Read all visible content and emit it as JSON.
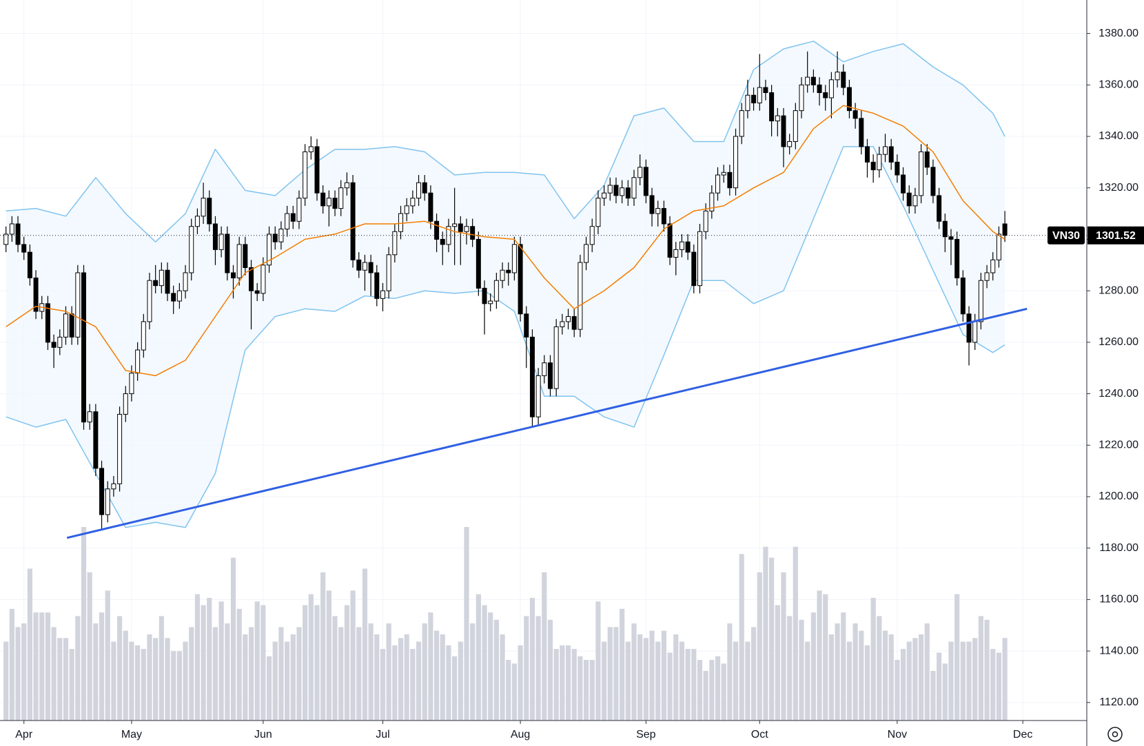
{
  "chart_data": {
    "type": "candlestick",
    "symbol": "VN30",
    "open": [
      1298,
      1302,
      1306,
      1298,
      1295,
      1285,
      1272,
      1275,
      1260,
      1258,
      1262,
      1271,
      1262,
      1287,
      1229,
      1233,
      1211,
      1193,
      1203,
      1205,
      1232,
      1240,
      1248,
      1257,
      1268,
      1284,
      1282,
      1288,
      1279,
      1276,
      1280,
      1287,
      1305,
      1309,
      1316,
      1306,
      1296,
      1302,
      1287,
      1285,
      1298,
      1289,
      1280,
      1279,
      1290,
      1302,
      1299,
      1304,
      1310,
      1307,
      1316,
      1334,
      1336,
      1318,
      1313,
      1316,
      1312,
      1320,
      1322,
      1292,
      1288,
      1291,
      1287,
      1277,
      1280,
      1294,
      1303,
      1310,
      1313,
      1316,
      1322,
      1318,
      1307,
      1300,
      1298,
      1305,
      1306,
      1303,
      1305,
      1300,
      1281,
      1275,
      1276,
      1284,
      1288,
      1287,
      1298,
      1271,
      1262,
      1231,
      1247,
      1252,
      1242,
      1266,
      1268,
      1270,
      1265,
      1291,
      1298,
      1305,
      1316,
      1318,
      1321,
      1317,
      1320,
      1316,
      1324,
      1328,
      1317,
      1310,
      1312,
      1306,
      1293,
      1296,
      1299,
      1295,
      1282,
      1303,
      1311,
      1318,
      1325,
      1326,
      1320,
      1340,
      1350,
      1356,
      1353,
      1359,
      1357,
      1346,
      1348,
      1336,
      1338,
      1350,
      1360,
      1363,
      1360,
      1357,
      1355,
      1362,
      1365,
      1359,
      1350,
      1347,
      1336,
      1330,
      1327,
      1333,
      1336,
      1330,
      1325,
      1318,
      1313,
      1317,
      1334,
      1328,
      1317,
      1307,
      1301,
      1300,
      1285,
      1271,
      1260,
      1268,
      1284,
      1287,
      1292,
      1306
    ],
    "high": [
      1305,
      1309,
      1309,
      1301,
      1298,
      1288,
      1278,
      1278,
      1263,
      1265,
      1274,
      1274,
      1290,
      1290,
      1236,
      1236,
      1214,
      1206,
      1208,
      1235,
      1243,
      1251,
      1260,
      1271,
      1287,
      1290,
      1291,
      1291,
      1282,
      1283,
      1290,
      1308,
      1312,
      1322,
      1319,
      1309,
      1305,
      1305,
      1290,
      1301,
      1301,
      1292,
      1283,
      1293,
      1305,
      1305,
      1307,
      1313,
      1313,
      1319,
      1337,
      1340,
      1339,
      1321,
      1319,
      1319,
      1323,
      1326,
      1325,
      1295,
      1294,
      1294,
      1290,
      1283,
      1297,
      1306,
      1313,
      1316,
      1319,
      1325,
      1325,
      1321,
      1310,
      1303,
      1308,
      1320,
      1309,
      1308,
      1308,
      1303,
      1284,
      1279,
      1287,
      1291,
      1291,
      1301,
      1301,
      1274,
      1265,
      1250,
      1255,
      1255,
      1269,
      1271,
      1273,
      1273,
      1294,
      1301,
      1308,
      1319,
      1321,
      1324,
      1324,
      1323,
      1323,
      1327,
      1333,
      1331,
      1320,
      1315,
      1315,
      1309,
      1299,
      1302,
      1302,
      1298,
      1306,
      1314,
      1321,
      1328,
      1329,
      1329,
      1343,
      1353,
      1362,
      1359,
      1372,
      1362,
      1360,
      1351,
      1351,
      1341,
      1353,
      1363,
      1373,
      1366,
      1363,
      1360,
      1365,
      1373,
      1368,
      1362,
      1353,
      1350,
      1339,
      1333,
      1336,
      1341,
      1339,
      1333,
      1328,
      1321,
      1320,
      1337,
      1337,
      1331,
      1320,
      1310,
      1304,
      1303,
      1288,
      1274,
      1271,
      1287,
      1290,
      1295,
      1305,
      1311
    ],
    "low": [
      1295,
      1299,
      1295,
      1292,
      1282,
      1269,
      1269,
      1257,
      1250,
      1255,
      1259,
      1259,
      1259,
      1226,
      1226,
      1208,
      1187,
      1190,
      1200,
      1202,
      1229,
      1237,
      1245,
      1254,
      1265,
      1279,
      1279,
      1276,
      1271,
      1273,
      1277,
      1284,
      1302,
      1306,
      1303,
      1290,
      1293,
      1284,
      1277,
      1282,
      1286,
      1265,
      1276,
      1276,
      1287,
      1296,
      1296,
      1301,
      1304,
      1304,
      1313,
      1331,
      1315,
      1310,
      1305,
      1309,
      1309,
      1317,
      1289,
      1285,
      1280,
      1278,
      1274,
      1272,
      1277,
      1291,
      1300,
      1307,
      1310,
      1313,
      1315,
      1304,
      1295,
      1290,
      1295,
      1290,
      1290,
      1298,
      1297,
      1278,
      1263,
      1272,
      1273,
      1281,
      1282,
      1284,
      1268,
      1250,
      1227,
      1228,
      1244,
      1239,
      1239,
      1263,
      1265,
      1262,
      1262,
      1288,
      1295,
      1302,
      1313,
      1315,
      1314,
      1314,
      1313,
      1313,
      1321,
      1314,
      1305,
      1305,
      1303,
      1290,
      1286,
      1293,
      1292,
      1279,
      1279,
      1300,
      1308,
      1315,
      1322,
      1317,
      1317,
      1337,
      1347,
      1350,
      1350,
      1354,
      1340,
      1340,
      1328,
      1333,
      1335,
      1347,
      1357,
      1357,
      1352,
      1350,
      1347,
      1359,
      1356,
      1347,
      1343,
      1333,
      1324,
      1322,
      1324,
      1330,
      1327,
      1322,
      1315,
      1310,
      1310,
      1314,
      1325,
      1314,
      1304,
      1295,
      1290,
      1282,
      1268,
      1251,
      1257,
      1265,
      1281,
      1284,
      1289,
      1299
    ],
    "close": [
      1302,
      1306,
      1298,
      1295,
      1285,
      1272,
      1275,
      1260,
      1258,
      1262,
      1271,
      1262,
      1287,
      1229,
      1233,
      1211,
      1193,
      1203,
      1205,
      1232,
      1240,
      1248,
      1257,
      1268,
      1284,
      1282,
      1288,
      1279,
      1276,
      1280,
      1287,
      1305,
      1309,
      1316,
      1306,
      1296,
      1302,
      1287,
      1285,
      1298,
      1289,
      1280,
      1279,
      1290,
      1302,
      1299,
      1304,
      1310,
      1307,
      1316,
      1334,
      1336,
      1318,
      1313,
      1316,
      1312,
      1320,
      1322,
      1292,
      1288,
      1291,
      1287,
      1277,
      1280,
      1294,
      1303,
      1310,
      1313,
      1316,
      1322,
      1318,
      1307,
      1300,
      1298,
      1305,
      1306,
      1303,
      1305,
      1300,
      1281,
      1275,
      1276,
      1284,
      1288,
      1287,
      1298,
      1271,
      1262,
      1231,
      1247,
      1252,
      1242,
      1266,
      1268,
      1270,
      1265,
      1291,
      1298,
      1305,
      1316,
      1318,
      1321,
      1317,
      1320,
      1316,
      1324,
      1328,
      1317,
      1310,
      1312,
      1306,
      1293,
      1296,
      1299,
      1295,
      1282,
      1303,
      1311,
      1318,
      1325,
      1326,
      1320,
      1340,
      1350,
      1356,
      1353,
      1359,
      1357,
      1346,
      1348,
      1336,
      1338,
      1350,
      1360,
      1363,
      1360,
      1357,
      1355,
      1362,
      1365,
      1359,
      1350,
      1347,
      1336,
      1330,
      1327,
      1333,
      1336,
      1330,
      1325,
      1318,
      1313,
      1317,
      1334,
      1328,
      1317,
      1307,
      1301,
      1300,
      1285,
      1271,
      1260,
      1268,
      1284,
      1287,
      1292,
      1302,
      1301.52
    ],
    "volume": [
      108,
      153,
      128,
      133,
      208,
      148,
      148,
      148,
      128,
      113,
      113,
      98,
      143,
      265,
      203,
      133,
      148,
      178,
      108,
      143,
      123,
      108,
      103,
      98,
      118,
      113,
      143,
      113,
      95,
      95,
      108,
      128,
      173,
      158,
      168,
      128,
      163,
      133,
      223,
      153,
      118,
      128,
      163,
      158,
      88,
      108,
      128,
      108,
      118,
      128,
      158,
      173,
      158,
      203,
      178,
      143,
      128,
      158,
      178,
      128,
      208,
      133,
      118,
      98,
      133,
      103,
      113,
      118,
      98,
      108,
      133,
      148,
      123,
      118,
      103,
      88,
      108,
      265,
      133,
      173,
      158,
      148,
      138,
      118,
      83,
      78,
      103,
      143,
      168,
      143,
      203,
      138,
      98,
      103,
      103,
      98,
      88,
      83,
      83,
      163,
      108,
      128,
      128,
      153,
      108,
      133,
      118,
      113,
      123,
      108,
      123,
      93,
      118,
      108,
      98,
      98,
      83,
      68,
      83,
      88,
      78,
      133,
      108,
      228,
      108,
      128,
      203,
      238,
      223,
      158,
      203,
      143,
      238,
      138,
      108,
      148,
      178,
      173,
      118,
      133,
      148,
      108,
      133,
      123,
      103,
      168,
      143,
      123,
      118,
      83,
      98,
      108,
      113,
      118,
      133,
      68,
      93,
      78,
      108,
      173,
      108,
      108,
      113,
      143,
      138,
      98,
      93,
      113
    ],
    "volume_lim": [
      0,
      300
    ],
    "up_color": "#ffffff",
    "down_color": "#000000",
    "volume_color": "#d1d4dc",
    "bollinger": {
      "x": [
        0,
        5,
        10,
        15,
        20,
        25,
        30,
        35,
        40,
        45,
        50,
        55,
        60,
        65,
        70,
        75,
        80,
        85,
        90,
        95,
        100,
        105,
        110,
        115,
        120,
        125,
        130,
        135,
        140,
        145,
        150,
        155,
        160,
        165,
        167
      ],
      "basis": [
        1266,
        1274,
        1272,
        1266,
        1249,
        1247,
        1253,
        1270,
        1287,
        1293,
        1300,
        1302,
        1306,
        1306,
        1307,
        1303,
        1301,
        1300,
        1285,
        1273,
        1280,
        1289,
        1304,
        1311,
        1313,
        1320,
        1326,
        1343,
        1352,
        1349,
        1344,
        1334,
        1315,
        1303,
        1300
      ],
      "upper": [
        1311,
        1312,
        1309,
        1324,
        1310,
        1299,
        1310,
        1335,
        1319,
        1317,
        1327,
        1335,
        1335,
        1336,
        1334,
        1325,
        1326,
        1326,
        1325,
        1308,
        1321,
        1348,
        1351,
        1338,
        1338,
        1366,
        1374,
        1377,
        1369,
        1373,
        1376,
        1367,
        1360,
        1349,
        1340
      ],
      "lower": [
        1231,
        1227,
        1230,
        1209,
        1188,
        1190,
        1188,
        1209,
        1257,
        1270,
        1273,
        1272,
        1278,
        1277,
        1280,
        1279,
        1280,
        1272,
        1239,
        1239,
        1231,
        1227,
        1255,
        1284,
        1284,
        1275,
        1280,
        1308,
        1336,
        1336,
        1313,
        1288,
        1263,
        1256,
        1259
      ],
      "basis_color": "#f57c00",
      "band_color": "#7fc3ef",
      "fill_color": "#eef6fd"
    },
    "trendline": {
      "x": [
        10.2,
        170.7
      ],
      "values": [
        1184,
        1273
      ],
      "color": "#2f5fe3"
    },
    "xlim": [
      -1,
      180.7
    ],
    "xticks": [
      {
        "value": 3,
        "label": "Apr"
      },
      {
        "value": 21,
        "label": "May"
      },
      {
        "value": 43,
        "label": "Jun"
      },
      {
        "value": 63,
        "label": "Jul"
      },
      {
        "value": 86,
        "label": "Aug"
      },
      {
        "value": 107,
        "label": "Sep"
      },
      {
        "value": 126,
        "label": "Oct"
      },
      {
        "value": 149,
        "label": "Nov"
      },
      {
        "value": 170,
        "label": "Dec"
      }
    ],
    "ylim": [
      1113,
      1393
    ],
    "yticks": [
      {
        "value": 1120,
        "label": "1120.00"
      },
      {
        "value": 1140,
        "label": "1140.00"
      },
      {
        "value": 1160,
        "label": "1160.00"
      },
      {
        "value": 1180,
        "label": "1180.00"
      },
      {
        "value": 1200,
        "label": "1200.00"
      },
      {
        "value": 1220,
        "label": "1220.00"
      },
      {
        "value": 1240,
        "label": "1240.00"
      },
      {
        "value": 1260,
        "label": "1260.00"
      },
      {
        "value": 1280,
        "label": "1280.00"
      },
      {
        "value": 1300,
        "label": "1300.00"
      },
      {
        "value": 1320,
        "label": "1320.00"
      },
      {
        "value": 1340,
        "label": "1340.00"
      },
      {
        "value": 1360,
        "label": "1360.00"
      },
      {
        "value": 1380,
        "label": "1380.00"
      }
    ],
    "grid": true
  }
}
